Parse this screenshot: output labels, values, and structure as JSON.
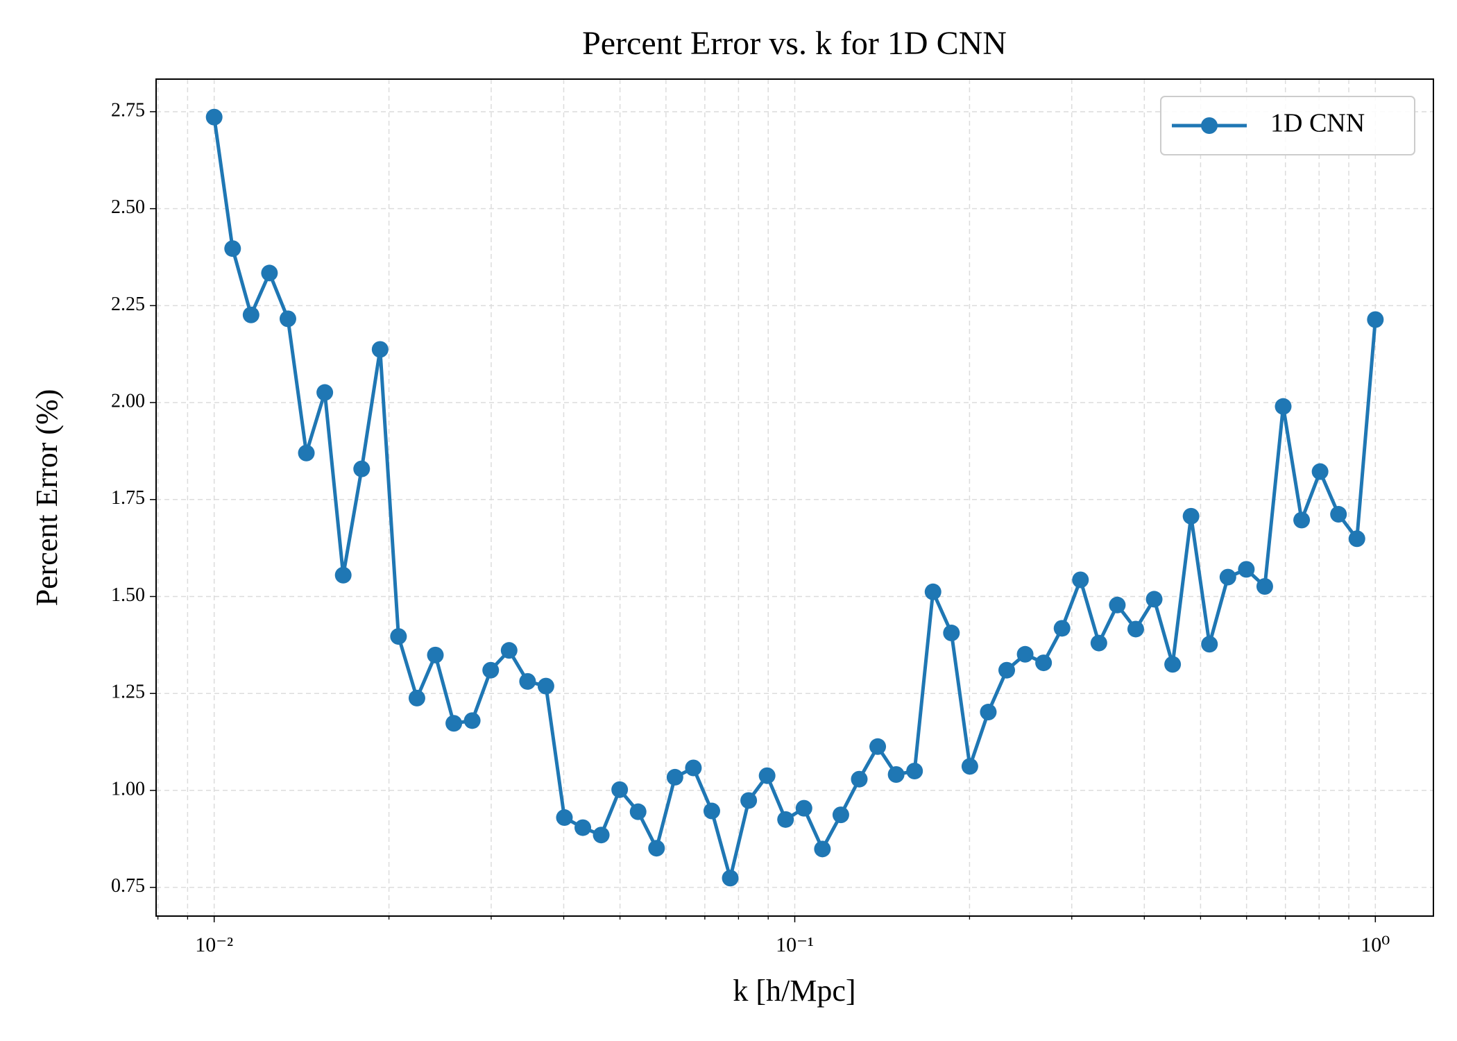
{
  "chart_data": {
    "type": "line",
    "title": "Percent Error vs. k for 1D CNN",
    "xlabel": "k [h/Mpc]",
    "ylabel": "Percent Error (%)",
    "xscale": "log",
    "grid": true,
    "legend_loc": "upper right",
    "xlim": [
      0.007943,
      1.2589
    ],
    "ylim": [
      0.676,
      2.834
    ],
    "xticks": [
      {
        "value": 0.01,
        "label": "10⁻²"
      },
      {
        "value": 0.1,
        "label": "10⁻¹"
      },
      {
        "value": 1,
        "label": "10⁰"
      }
    ],
    "xminorticks": [
      0.008,
      0.009,
      0.02,
      0.03,
      0.04,
      0.05,
      0.06,
      0.07,
      0.08,
      0.09,
      0.2,
      0.3,
      0.4,
      0.5,
      0.6,
      0.7,
      0.8,
      0.9
    ],
    "yticks": [
      0.75,
      {
        "value": 1.0,
        "label": "1.00"
      },
      1.25,
      {
        "value": 1.5,
        "label": "1.50"
      },
      1.75,
      {
        "value": 2.0,
        "label": "2.00"
      },
      2.25,
      {
        "value": 2.5,
        "label": "2.50"
      },
      2.75
    ],
    "x": [
      0.01,
      0.010759,
      0.011575,
      0.012452,
      0.013397,
      0.014413,
      0.015507,
      0.016683,
      0.017948,
      0.01931,
      0.020772,
      0.022348,
      0.024043,
      0.025867,
      0.027826,
      0.029941,
      0.032212,
      0.034655,
      0.037276,
      0.040107,
      0.043148,
      0.046416,
      0.049937,
      0.053725,
      0.057797,
      0.06218,
      0.066898,
      0.071969,
      0.077426,
      0.0833,
      0.089615,
      0.096413,
      0.10372,
      0.11159,
      0.12005,
      0.12915,
      0.13895,
      0.14949,
      0.16082,
      0.17302,
      0.18614,
      0.20026,
      0.21544,
      0.23178,
      0.24936,
      0.26827,
      0.28862,
      0.3105,
      0.33405,
      0.35938,
      0.38664,
      0.41596,
      0.44751,
      0.48144,
      0.51795,
      0.55724,
      0.59948,
      0.64495,
      0.69386,
      0.74648,
      0.80309,
      0.86399,
      0.92952,
      1.0
    ],
    "series": [
      {
        "name": "1D CNN",
        "color": "#1f77b4",
        "values": [
          2.736,
          2.397,
          2.226,
          2.334,
          2.216,
          1.87,
          2.026,
          1.555,
          1.829,
          2.137,
          1.397,
          1.238,
          1.349,
          1.173,
          1.18,
          1.31,
          1.361,
          1.281,
          1.269,
          0.93,
          0.904,
          0.885,
          1.002,
          0.945,
          0.851,
          1.034,
          1.058,
          0.947,
          0.774,
          0.974,
          1.038,
          0.925,
          0.954,
          0.849,
          0.937,
          1.029,
          1.113,
          1.041,
          1.05,
          1.512,
          1.406,
          1.062,
          1.202,
          1.31,
          1.351,
          1.329,
          1.418,
          1.543,
          1.38,
          1.478,
          1.416,
          1.493,
          1.325,
          1.707,
          1.377,
          1.55,
          1.57,
          1.526,
          1.99,
          1.697,
          1.822,
          1.712,
          1.649,
          2.214
        ]
      }
    ]
  }
}
